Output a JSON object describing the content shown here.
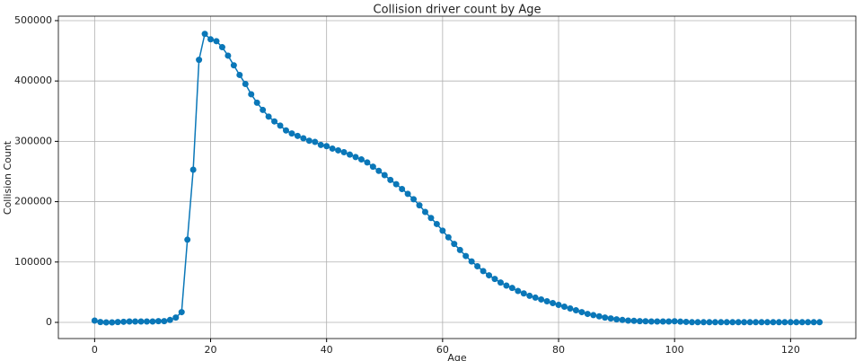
{
  "chart_data": {
    "type": "line",
    "title": "Collision driver count by Age",
    "xlabel": "Age",
    "ylabel": "Collision Count",
    "x": [
      0,
      1,
      2,
      3,
      4,
      5,
      6,
      7,
      8,
      9,
      10,
      11,
      12,
      13,
      14,
      15,
      16,
      17,
      18,
      19,
      20,
      21,
      22,
      23,
      24,
      25,
      26,
      27,
      28,
      29,
      30,
      31,
      32,
      33,
      34,
      35,
      36,
      37,
      38,
      39,
      40,
      41,
      42,
      43,
      44,
      45,
      46,
      47,
      48,
      49,
      50,
      51,
      52,
      53,
      54,
      55,
      56,
      57,
      58,
      59,
      60,
      61,
      62,
      63,
      64,
      65,
      66,
      67,
      68,
      69,
      70,
      71,
      72,
      73,
      74,
      75,
      76,
      77,
      78,
      79,
      80,
      81,
      82,
      83,
      84,
      85,
      86,
      87,
      88,
      89,
      90,
      91,
      92,
      93,
      94,
      95,
      96,
      97,
      98,
      99,
      100,
      101,
      102,
      103,
      104,
      105,
      106,
      107,
      108,
      109,
      110,
      111,
      112,
      113,
      114,
      115,
      116,
      117,
      118,
      119,
      120,
      121,
      122,
      123,
      124,
      125
    ],
    "series": [
      {
        "name": "Collision Count",
        "color": "#0a77b8",
        "values": [
          3000,
          500,
          0,
          0,
          500,
          1000,
          1500,
          1500,
          1500,
          1500,
          1500,
          2000,
          2000,
          4000,
          8000,
          17000,
          137000,
          253000,
          435000,
          478000,
          469000,
          466000,
          456000,
          442000,
          426000,
          410000,
          395000,
          378000,
          364000,
          352000,
          341000,
          333000,
          326000,
          318000,
          313000,
          309000,
          305000,
          301000,
          299000,
          294000,
          292000,
          288000,
          285000,
          282000,
          278000,
          274000,
          270000,
          265000,
          258000,
          251000,
          244000,
          236000,
          229000,
          221000,
          213000,
          204000,
          194000,
          183000,
          173000,
          163000,
          152000,
          141000,
          130000,
          120000,
          110000,
          101000,
          93000,
          85000,
          78000,
          72000,
          66000,
          61000,
          57000,
          52000,
          48000,
          44000,
          41000,
          38000,
          35000,
          32000,
          29000,
          26000,
          23000,
          20000,
          17000,
          14000,
          12000,
          10000,
          8000,
          6500,
          5000,
          4000,
          3000,
          2500,
          2000,
          1800,
          1500,
          1500,
          1500,
          1500,
          1800,
          1200,
          800,
          300,
          300,
          300,
          300,
          300,
          300,
          300,
          300,
          300,
          300,
          300,
          300,
          300,
          300,
          300,
          300,
          300,
          300,
          300,
          300,
          300,
          300,
          300
        ]
      }
    ],
    "xlim": [
      -6.25,
      131.25
    ],
    "xticks": [
      0,
      20,
      40,
      60,
      80,
      100,
      120
    ],
    "ylim": [
      -26800,
      507400
    ],
    "yticks": [
      0,
      100000,
      200000,
      300000,
      400000,
      500000
    ],
    "grid": true
  }
}
